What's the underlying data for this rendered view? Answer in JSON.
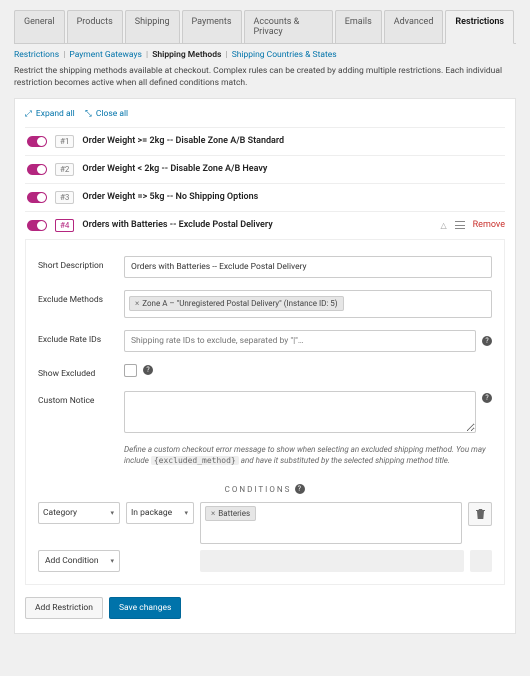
{
  "colors": {
    "link": "#0073aa",
    "accent": "#b4267f",
    "danger": "#c9302c",
    "primary_btn": "#0073aa"
  },
  "nav_tabs": [
    {
      "label": "General",
      "active": false
    },
    {
      "label": "Products",
      "active": false
    },
    {
      "label": "Shipping",
      "active": false
    },
    {
      "label": "Payments",
      "active": false
    },
    {
      "label": "Accounts & Privacy",
      "active": false
    },
    {
      "label": "Emails",
      "active": false
    },
    {
      "label": "Advanced",
      "active": false
    },
    {
      "label": "Restrictions",
      "active": true
    }
  ],
  "sub_tabs": [
    {
      "label": "Restrictions",
      "current": false
    },
    {
      "label": "Payment Gateways",
      "current": false
    },
    {
      "label": "Shipping Methods",
      "current": true
    },
    {
      "label": "Shipping Countries & States",
      "current": false
    }
  ],
  "page_desc": "Restrict the shipping methods available at checkout. Complex rules can be created by adding multiple restrictions. Each individual restriction becomes active when all defined conditions match.",
  "panel_actions": {
    "expand": "Expand all",
    "close": "Close all"
  },
  "rules": [
    {
      "num": "#1",
      "title": "Order Weight >= 2kg -- Disable Zone A/B Standard",
      "expanded": false
    },
    {
      "num": "#2",
      "title": "Order Weight < 2kg -- Disable Zone A/B Heavy",
      "expanded": false
    },
    {
      "num": "#3",
      "title": "Order Weight => 5kg -- No Shipping Options",
      "expanded": false
    },
    {
      "num": "#4",
      "title": "Orders with Batteries -- Exclude Postal Delivery",
      "expanded": true
    }
  ],
  "rule_controls": {
    "remove": "Remove"
  },
  "form": {
    "short_desc": {
      "label": "Short Description",
      "value": "Orders with Batteries -- Exclude Postal Delivery"
    },
    "exclude_methods": {
      "label": "Exclude Methods",
      "chip": "Zone A – \"Unregistered Postal Delivery\" (Instance ID: 5)"
    },
    "exclude_rate_ids": {
      "label": "Exclude Rate IDs",
      "placeholder": "Shipping rate IDs to exclude, separated by \"|\"…"
    },
    "show_excluded": {
      "label": "Show Excluded"
    },
    "custom_notice": {
      "label": "Custom Notice",
      "hint_pre": "Define a custom checkout error message to show when selecting an excluded shipping method. You may include ",
      "hint_code": "{excluded_method}",
      "hint_post": " and have it substituted by the selected shipping method title."
    }
  },
  "conditions": {
    "header": "CONDITIONS",
    "row": {
      "type_select": "Category",
      "scope_select": "In package",
      "chip": "Batteries"
    },
    "add_label": "Add Condition"
  },
  "footer": {
    "add_restriction": "Add Restriction",
    "save": "Save changes"
  }
}
